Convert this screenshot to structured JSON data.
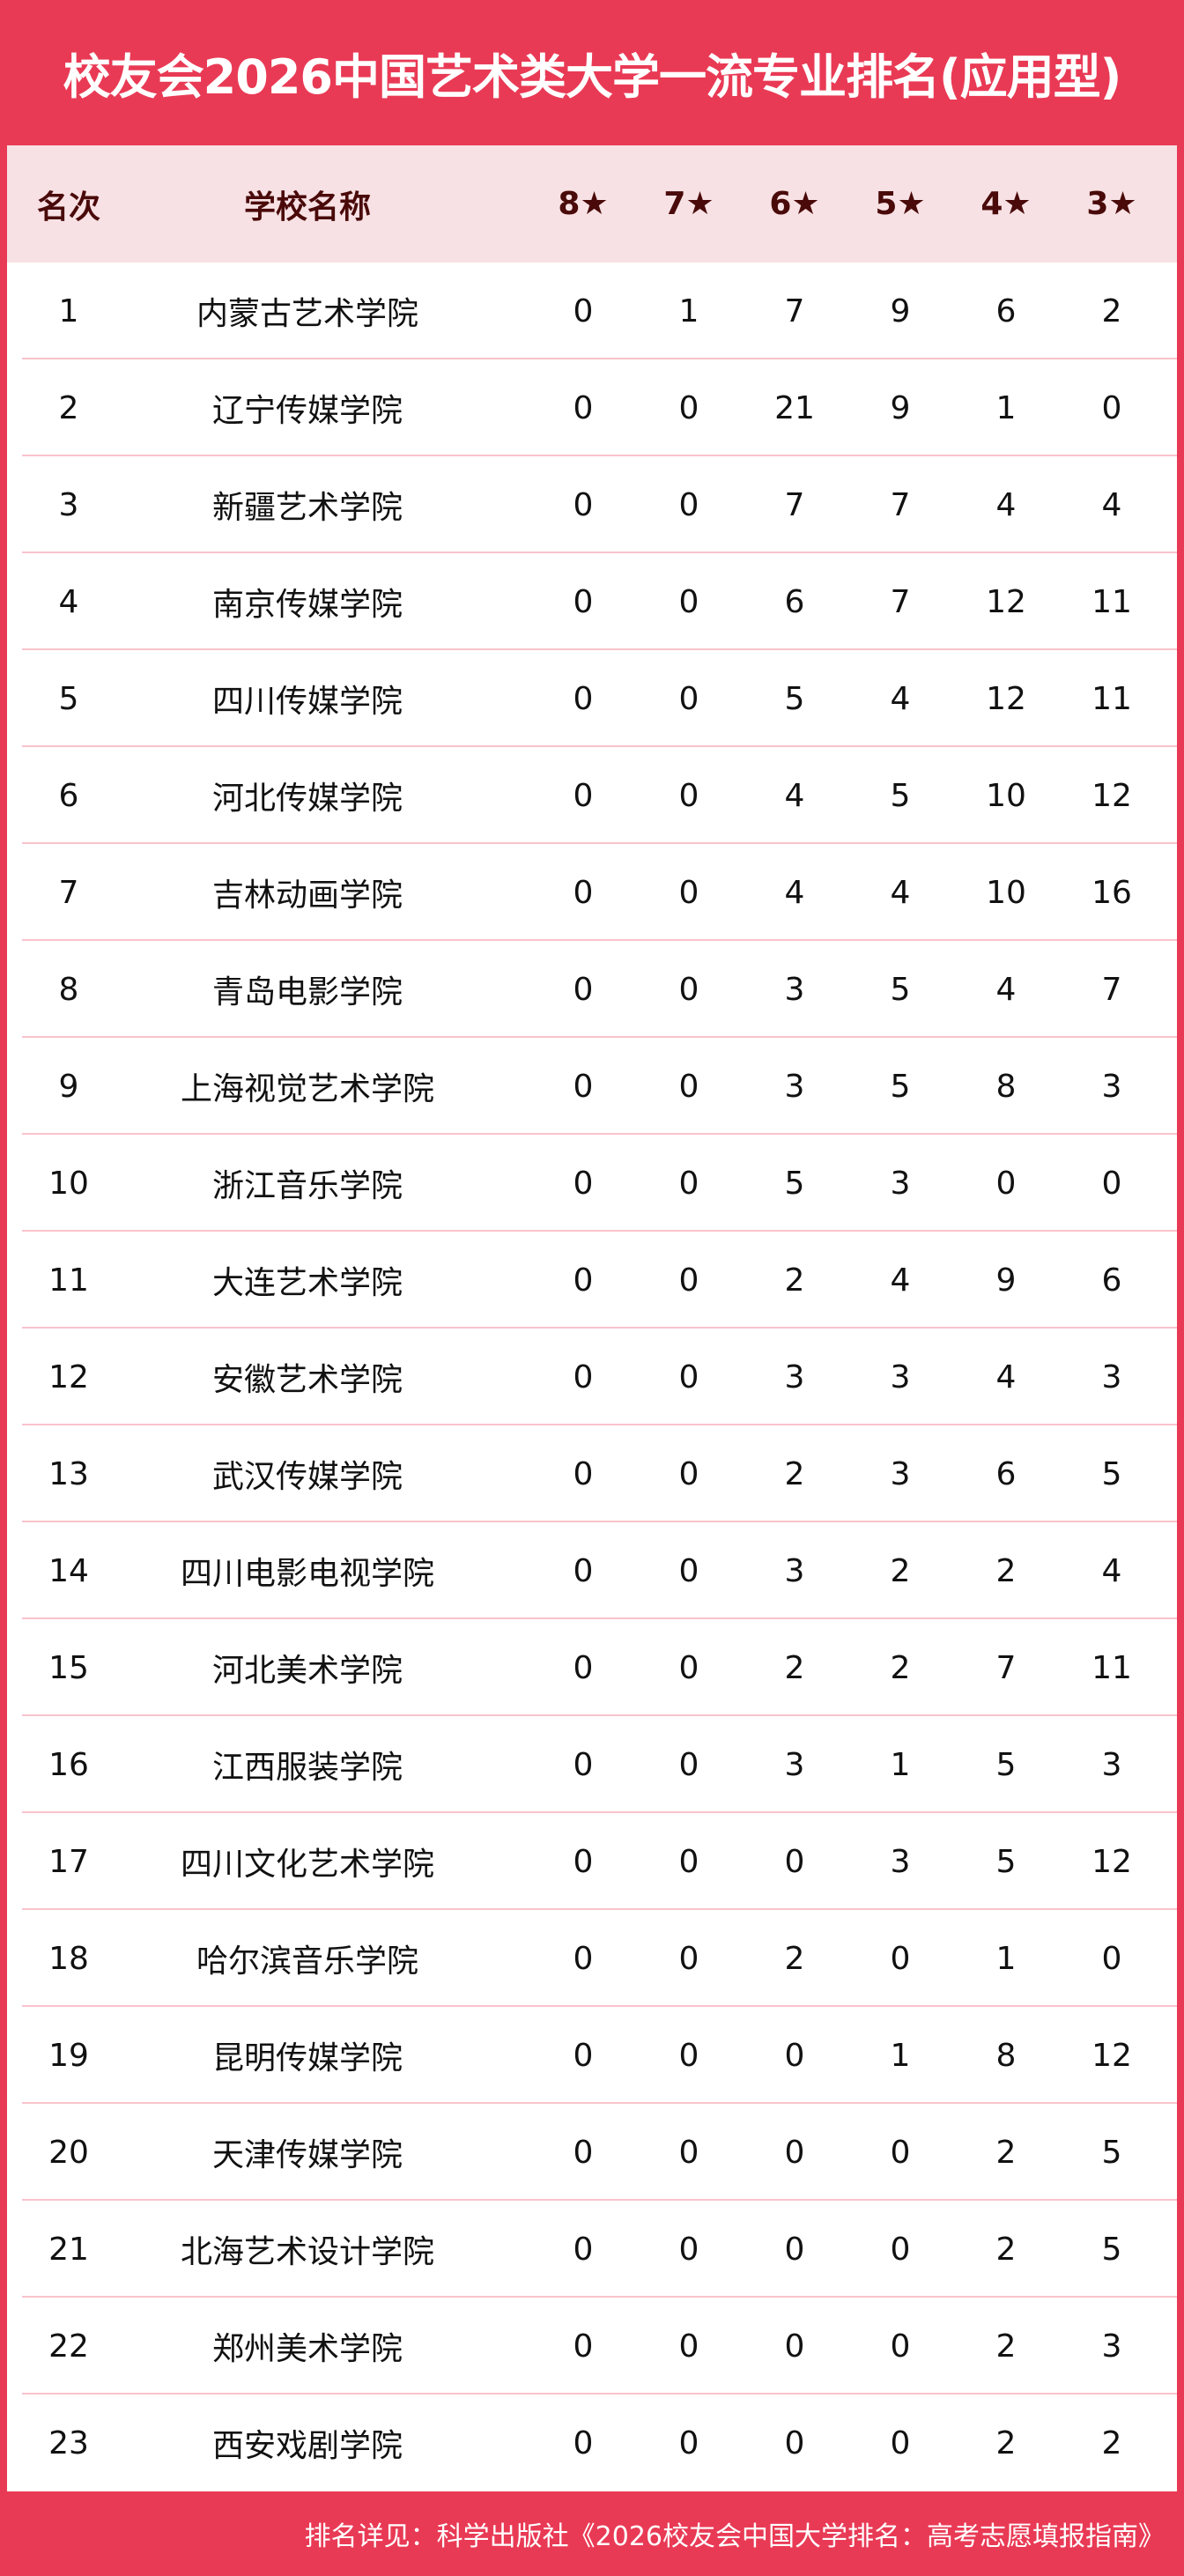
{
  "title": "校友会2026中国艺术类大学一流专业排名(应用型)",
  "headers": [
    "名次",
    "学校名称",
    "8★",
    "7★",
    "6★",
    "5★",
    "4★",
    "3★"
  ],
  "rows": [
    [
      "1",
      "内蒙古艺术学院",
      "0",
      "1",
      "7",
      "9",
      "6",
      "2"
    ],
    [
      "2",
      "辽宁传媒学院",
      "0",
      "0",
      "21",
      "9",
      "1",
      "0"
    ],
    [
      "3",
      "新疆艺术学院",
      "0",
      "0",
      "7",
      "7",
      "4",
      "4"
    ],
    [
      "4",
      "南京传媒学院",
      "0",
      "0",
      "6",
      "7",
      "12",
      "11"
    ],
    [
      "5",
      "四川传媒学院",
      "0",
      "0",
      "5",
      "4",
      "12",
      "11"
    ],
    [
      "6",
      "河北传媒学院",
      "0",
      "0",
      "4",
      "5",
      "10",
      "12"
    ],
    [
      "7",
      "吉林动画学院",
      "0",
      "0",
      "4",
      "4",
      "10",
      "16"
    ],
    [
      "8",
      "青岛电影学院",
      "0",
      "0",
      "3",
      "5",
      "4",
      "7"
    ],
    [
      "9",
      "上海视觉艺术学院",
      "0",
      "0",
      "3",
      "5",
      "8",
      "3"
    ],
    [
      "10",
      "浙江音乐学院",
      "0",
      "0",
      "5",
      "3",
      "0",
      "0"
    ],
    [
      "11",
      "大连艺术学院",
      "0",
      "0",
      "2",
      "4",
      "9",
      "6"
    ],
    [
      "12",
      "安徽艺术学院",
      "0",
      "0",
      "3",
      "3",
      "4",
      "3"
    ],
    [
      "13",
      "武汉传媒学院",
      "0",
      "0",
      "2",
      "3",
      "6",
      "5"
    ],
    [
      "14",
      "四川电影电视学院",
      "0",
      "0",
      "3",
      "2",
      "2",
      "4"
    ],
    [
      "15",
      "河北美术学院",
      "0",
      "0",
      "2",
      "2",
      "7",
      "11"
    ],
    [
      "16",
      "江西服装学院",
      "0",
      "0",
      "3",
      "1",
      "5",
      "3"
    ],
    [
      "17",
      "四川文化艺术学院",
      "0",
      "0",
      "0",
      "3",
      "5",
      "12"
    ],
    [
      "18",
      "哈尔滨音乐学院",
      "0",
      "0",
      "2",
      "0",
      "1",
      "0"
    ],
    [
      "19",
      "昆明传媒学院",
      "0",
      "0",
      "0",
      "1",
      "8",
      "12"
    ],
    [
      "20",
      "天津传媒学院",
      "0",
      "0",
      "0",
      "0",
      "2",
      "5"
    ],
    [
      "21",
      "北海艺术设计学院",
      "0",
      "0",
      "0",
      "0",
      "2",
      "5"
    ],
    [
      "22",
      "郑州美术学院",
      "0",
      "0",
      "0",
      "0",
      "2",
      "3"
    ],
    [
      "23",
      "西安戏剧学院",
      "0",
      "0",
      "0",
      "0",
      "2",
      "2"
    ]
  ],
  "footer": "排名详见：科学出版社《2026校友会中国大学排名：高考志愿填报指南》",
  "colors": {
    "accent": "#e93a55",
    "header_bg": "#f7e1e4",
    "header_text": "#4a0a0a",
    "divider": "#f9c3cc"
  }
}
